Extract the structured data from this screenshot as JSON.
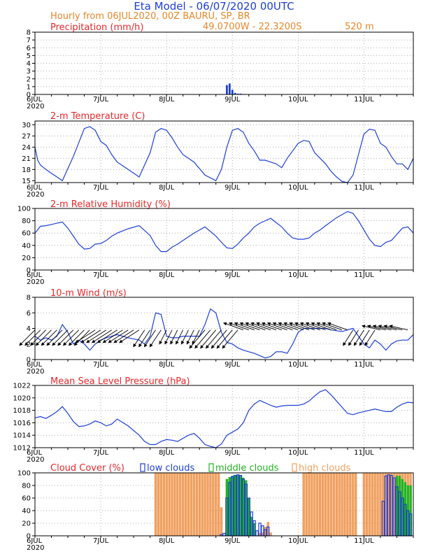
{
  "header": {
    "title": "Eta Model - 06/07/2020 00UTC",
    "subtitle": "Hourly from 06JUL2020, 00Z  BAURU, SP, BR",
    "coords": "49.0700W - 22.3200S",
    "elevation": "520  m"
  },
  "colors": {
    "line": "#1e3fd6",
    "low": "#1e3fd6",
    "mid": "#22b422",
    "high": "#f0a060",
    "title_red": "#e8282a",
    "title_blue": "#1e3fd6",
    "orange": "#e8872a",
    "wind_arrow": "#000000"
  },
  "x_axis": {
    "first_label": "6JUL",
    "year_label": "2020",
    "tick_labels": [
      "7JUL",
      "8JUL",
      "9JUL",
      "10JUL",
      "11JUL"
    ],
    "hours_total": 138
  },
  "chart_data": [
    {
      "id": "precip",
      "type": "bar",
      "title": "Precipitation (mm/h)",
      "ylim": [
        0,
        8
      ],
      "yticks": [
        0,
        1,
        2,
        3,
        4,
        5,
        6,
        7,
        8
      ],
      "x_hours": [
        70,
        71,
        72,
        73,
        74,
        75,
        76
      ],
      "values": [
        1.2,
        1.4,
        0.6,
        0.2,
        0.1,
        0.1,
        0.05
      ]
    },
    {
      "id": "temp",
      "type": "line",
      "title": "2-m Temperature (C)",
      "ylim": [
        14.5,
        31
      ],
      "yticks": [
        15,
        18,
        21,
        24,
        27,
        30
      ],
      "x_hours": [
        0,
        1,
        2,
        4,
        6,
        8,
        10,
        14,
        18,
        20,
        22,
        24,
        26,
        28,
        30,
        34,
        38,
        42,
        44,
        46,
        48,
        50,
        52,
        54,
        58,
        62,
        66,
        68,
        70,
        72,
        74,
        76,
        78,
        80,
        82,
        84,
        86,
        88,
        90,
        92,
        94,
        96,
        98,
        100,
        102,
        104,
        106,
        108,
        110,
        112,
        114,
        116,
        118,
        120,
        122,
        124,
        126,
        128,
        130,
        132,
        134,
        136,
        138
      ],
      "values": [
        24.0,
        20.5,
        19.2,
        18.0,
        17.0,
        16.0,
        15.0,
        21.5,
        29.0,
        29.5,
        28.5,
        25.5,
        24.5,
        22.0,
        20.0,
        18.0,
        16.0,
        22.5,
        28.0,
        29.0,
        28.5,
        26.5,
        24.0,
        22.0,
        20.0,
        16.5,
        15.0,
        18.0,
        24.0,
        28.5,
        29.0,
        28.0,
        25.0,
        23.0,
        20.5,
        20.5,
        20.0,
        19.5,
        18.5,
        21.0,
        23.0,
        25.0,
        25.8,
        25.5,
        22.5,
        21.0,
        19.5,
        17.5,
        16.0,
        14.8,
        14.5,
        16.5,
        22.0,
        27.5,
        28.8,
        28.5,
        25.0,
        24.0,
        21.5,
        19.5,
        19.5,
        18.0,
        21.0
      ]
    },
    {
      "id": "rh",
      "type": "line",
      "title": "2-m Relative Humidity (%)",
      "ylim": [
        0,
        100
      ],
      "yticks": [
        0,
        20,
        40,
        60,
        80,
        100
      ],
      "x_hours": [
        0,
        2,
        4,
        6,
        8,
        10,
        12,
        14,
        16,
        18,
        20,
        22,
        24,
        26,
        28,
        30,
        34,
        38,
        42,
        44,
        46,
        48,
        50,
        52,
        54,
        58,
        62,
        66,
        68,
        70,
        72,
        74,
        76,
        78,
        80,
        82,
        86,
        90,
        92,
        94,
        96,
        98,
        100,
        102,
        104,
        106,
        110,
        114,
        116,
        118,
        120,
        122,
        124,
        126,
        128,
        130,
        132,
        134,
        136,
        138
      ],
      "values": [
        60,
        71,
        72,
        74,
        76,
        78,
        68,
        55,
        42,
        34,
        35,
        42,
        43,
        48,
        55,
        60,
        67,
        72,
        56,
        40,
        30,
        30,
        37,
        42,
        48,
        60,
        70,
        55,
        45,
        36,
        35,
        42,
        52,
        60,
        70,
        76,
        84,
        70,
        60,
        52,
        50,
        50,
        52,
        60,
        65,
        72,
        85,
        95,
        92,
        80,
        65,
        50,
        40,
        38,
        45,
        48,
        58,
        68,
        70,
        60
      ]
    },
    {
      "id": "wind",
      "type": "line",
      "title": "10-m Wind (m/s)",
      "ylim": [
        0,
        8
      ],
      "yticks": [
        0,
        2,
        4,
        6,
        8
      ],
      "x_hours": [
        0,
        2,
        4,
        6,
        8,
        10,
        12,
        14,
        16,
        18,
        20,
        22,
        24,
        26,
        28,
        30,
        34,
        38,
        40,
        42,
        44,
        46,
        48,
        50,
        52,
        54,
        56,
        58,
        60,
        62,
        64,
        66,
        68,
        70,
        72,
        74,
        76,
        78,
        80,
        82,
        84,
        86,
        88,
        90,
        92,
        94,
        96,
        98,
        100,
        102,
        104,
        106,
        108,
        110,
        112,
        114,
        116,
        118,
        120,
        122,
        124,
        126,
        128,
        130,
        132,
        134,
        136,
        138
      ],
      "values": [
        3.0,
        2.5,
        2.8,
        2.5,
        3.0,
        4.5,
        3.5,
        2.0,
        2.5,
        2.0,
        1.2,
        2.0,
        2.5,
        2.8,
        3.0,
        3.2,
        2.8,
        2.5,
        2.0,
        3.0,
        6.0,
        5.8,
        3.0,
        2.8,
        2.8,
        3.0,
        3.0,
        3.0,
        3.0,
        4.5,
        6.5,
        6.0,
        3.5,
        2.2,
        2.0,
        1.5,
        1.2,
        1.0,
        0.8,
        0.5,
        0.2,
        0.4,
        1.0,
        1.0,
        0.8,
        2.0,
        3.5,
        4.0,
        4.0,
        4.0,
        4.0,
        4.0,
        3.8,
        3.7,
        3.6,
        3.8,
        4.0,
        3.0,
        2.0,
        1.5,
        2.5,
        2.0,
        1.2,
        2.0,
        2.4,
        2.5,
        2.5,
        3.2
      ]
    },
    {
      "id": "mslp",
      "type": "line",
      "title": "Mean Sea Level Pressure (hPa)",
      "ylim": [
        1012,
        1022
      ],
      "yticks": [
        1012,
        1014,
        1016,
        1018,
        1020,
        1022
      ],
      "x_hours": [
        0,
        2,
        4,
        6,
        8,
        10,
        12,
        14,
        16,
        18,
        20,
        22,
        24,
        26,
        28,
        30,
        34,
        38,
        40,
        42,
        44,
        46,
        48,
        50,
        52,
        54,
        56,
        58,
        60,
        62,
        64,
        66,
        68,
        70,
        72,
        74,
        76,
        78,
        80,
        82,
        84,
        86,
        88,
        90,
        92,
        94,
        96,
        98,
        100,
        102,
        104,
        106,
        108,
        110,
        112,
        114,
        116,
        118,
        120,
        122,
        124,
        126,
        128,
        130,
        132,
        134,
        136,
        138
      ],
      "values": [
        1016.8,
        1017.0,
        1016.7,
        1017.2,
        1017.8,
        1018.6,
        1017.5,
        1016.2,
        1015.4,
        1015.5,
        1015.8,
        1016.3,
        1016.0,
        1015.5,
        1015.8,
        1016.6,
        1015.5,
        1014.0,
        1013.0,
        1012.5,
        1012.5,
        1013.0,
        1013.3,
        1013.2,
        1013.0,
        1013.5,
        1014.0,
        1014.3,
        1013.5,
        1012.5,
        1012.2,
        1012.0,
        1012.6,
        1014.0,
        1014.5,
        1015.0,
        1016.0,
        1018.0,
        1019.0,
        1019.6,
        1019.2,
        1018.8,
        1018.5,
        1018.7,
        1018.8,
        1018.8,
        1018.8,
        1019.0,
        1019.5,
        1020.3,
        1021.0,
        1021.3,
        1020.5,
        1019.5,
        1018.5,
        1017.5,
        1017.3,
        1017.6,
        1017.8,
        1018.0,
        1018.2,
        1018.0,
        1017.8,
        1017.8,
        1018.5,
        1019.0,
        1019.3,
        1019.2
      ]
    },
    {
      "id": "cloud",
      "type": "bar",
      "title": "Cloud Cover (%)",
      "ylim": [
        0,
        100
      ],
      "yticks": [
        0,
        20,
        40,
        60,
        80,
        100
      ],
      "legend": [
        "low clouds",
        "middle clouds",
        "high clouds"
      ],
      "series": [
        {
          "name": "high clouds",
          "x_hours": [
            44,
            45,
            46,
            47,
            48,
            49,
            50,
            51,
            52,
            53,
            54,
            55,
            56,
            57,
            58,
            59,
            60,
            61,
            62,
            63,
            64,
            65,
            66,
            67,
            68,
            82,
            83,
            84,
            85,
            86,
            98,
            99,
            100,
            101,
            102,
            103,
            104,
            105,
            106,
            107,
            108,
            109,
            110,
            111,
            112,
            113,
            114,
            115,
            116,
            117,
            120,
            121,
            122,
            123,
            124,
            125,
            126,
            127,
            128,
            129,
            130,
            131,
            132,
            133,
            134,
            135,
            136,
            137
          ],
          "values": [
            100,
            100,
            100,
            100,
            100,
            100,
            100,
            100,
            100,
            100,
            100,
            100,
            100,
            100,
            100,
            100,
            100,
            100,
            100,
            100,
            100,
            100,
            100,
            100,
            45,
            4,
            5,
            14,
            22,
            5,
            100,
            100,
            100,
            100,
            100,
            100,
            100,
            100,
            100,
            100,
            100,
            100,
            100,
            100,
            100,
            100,
            100,
            100,
            100,
            100,
            100,
            100,
            100,
            100,
            100,
            100,
            100,
            100,
            100,
            100,
            100,
            100,
            100,
            100,
            100,
            100,
            100,
            100
          ]
        },
        {
          "name": "middle clouds",
          "x_hours": [
            70,
            71,
            72,
            73,
            74,
            75,
            76,
            77,
            78,
            79,
            80,
            132,
            133,
            134,
            135,
            136,
            137
          ],
          "values": [
            90,
            93,
            95,
            96,
            96,
            95,
            92,
            88,
            60,
            30,
            20,
            95,
            95,
            90,
            85,
            80,
            80
          ]
        },
        {
          "name": "low clouds",
          "x_hours": [
            68,
            69,
            70,
            71,
            72,
            73,
            74,
            75,
            76,
            77,
            78,
            79,
            80,
            81,
            82,
            83,
            84,
            85,
            127,
            128,
            129,
            130,
            131,
            132,
            133,
            134,
            135,
            136,
            137
          ],
          "values": [
            2,
            4,
            60,
            85,
            94,
            96,
            97,
            96,
            90,
            82,
            60,
            38,
            24,
            8,
            20,
            16,
            10,
            14,
            55,
            95,
            97,
            96,
            92,
            78,
            70,
            60,
            50,
            40,
            35
          ]
        }
      ]
    }
  ]
}
